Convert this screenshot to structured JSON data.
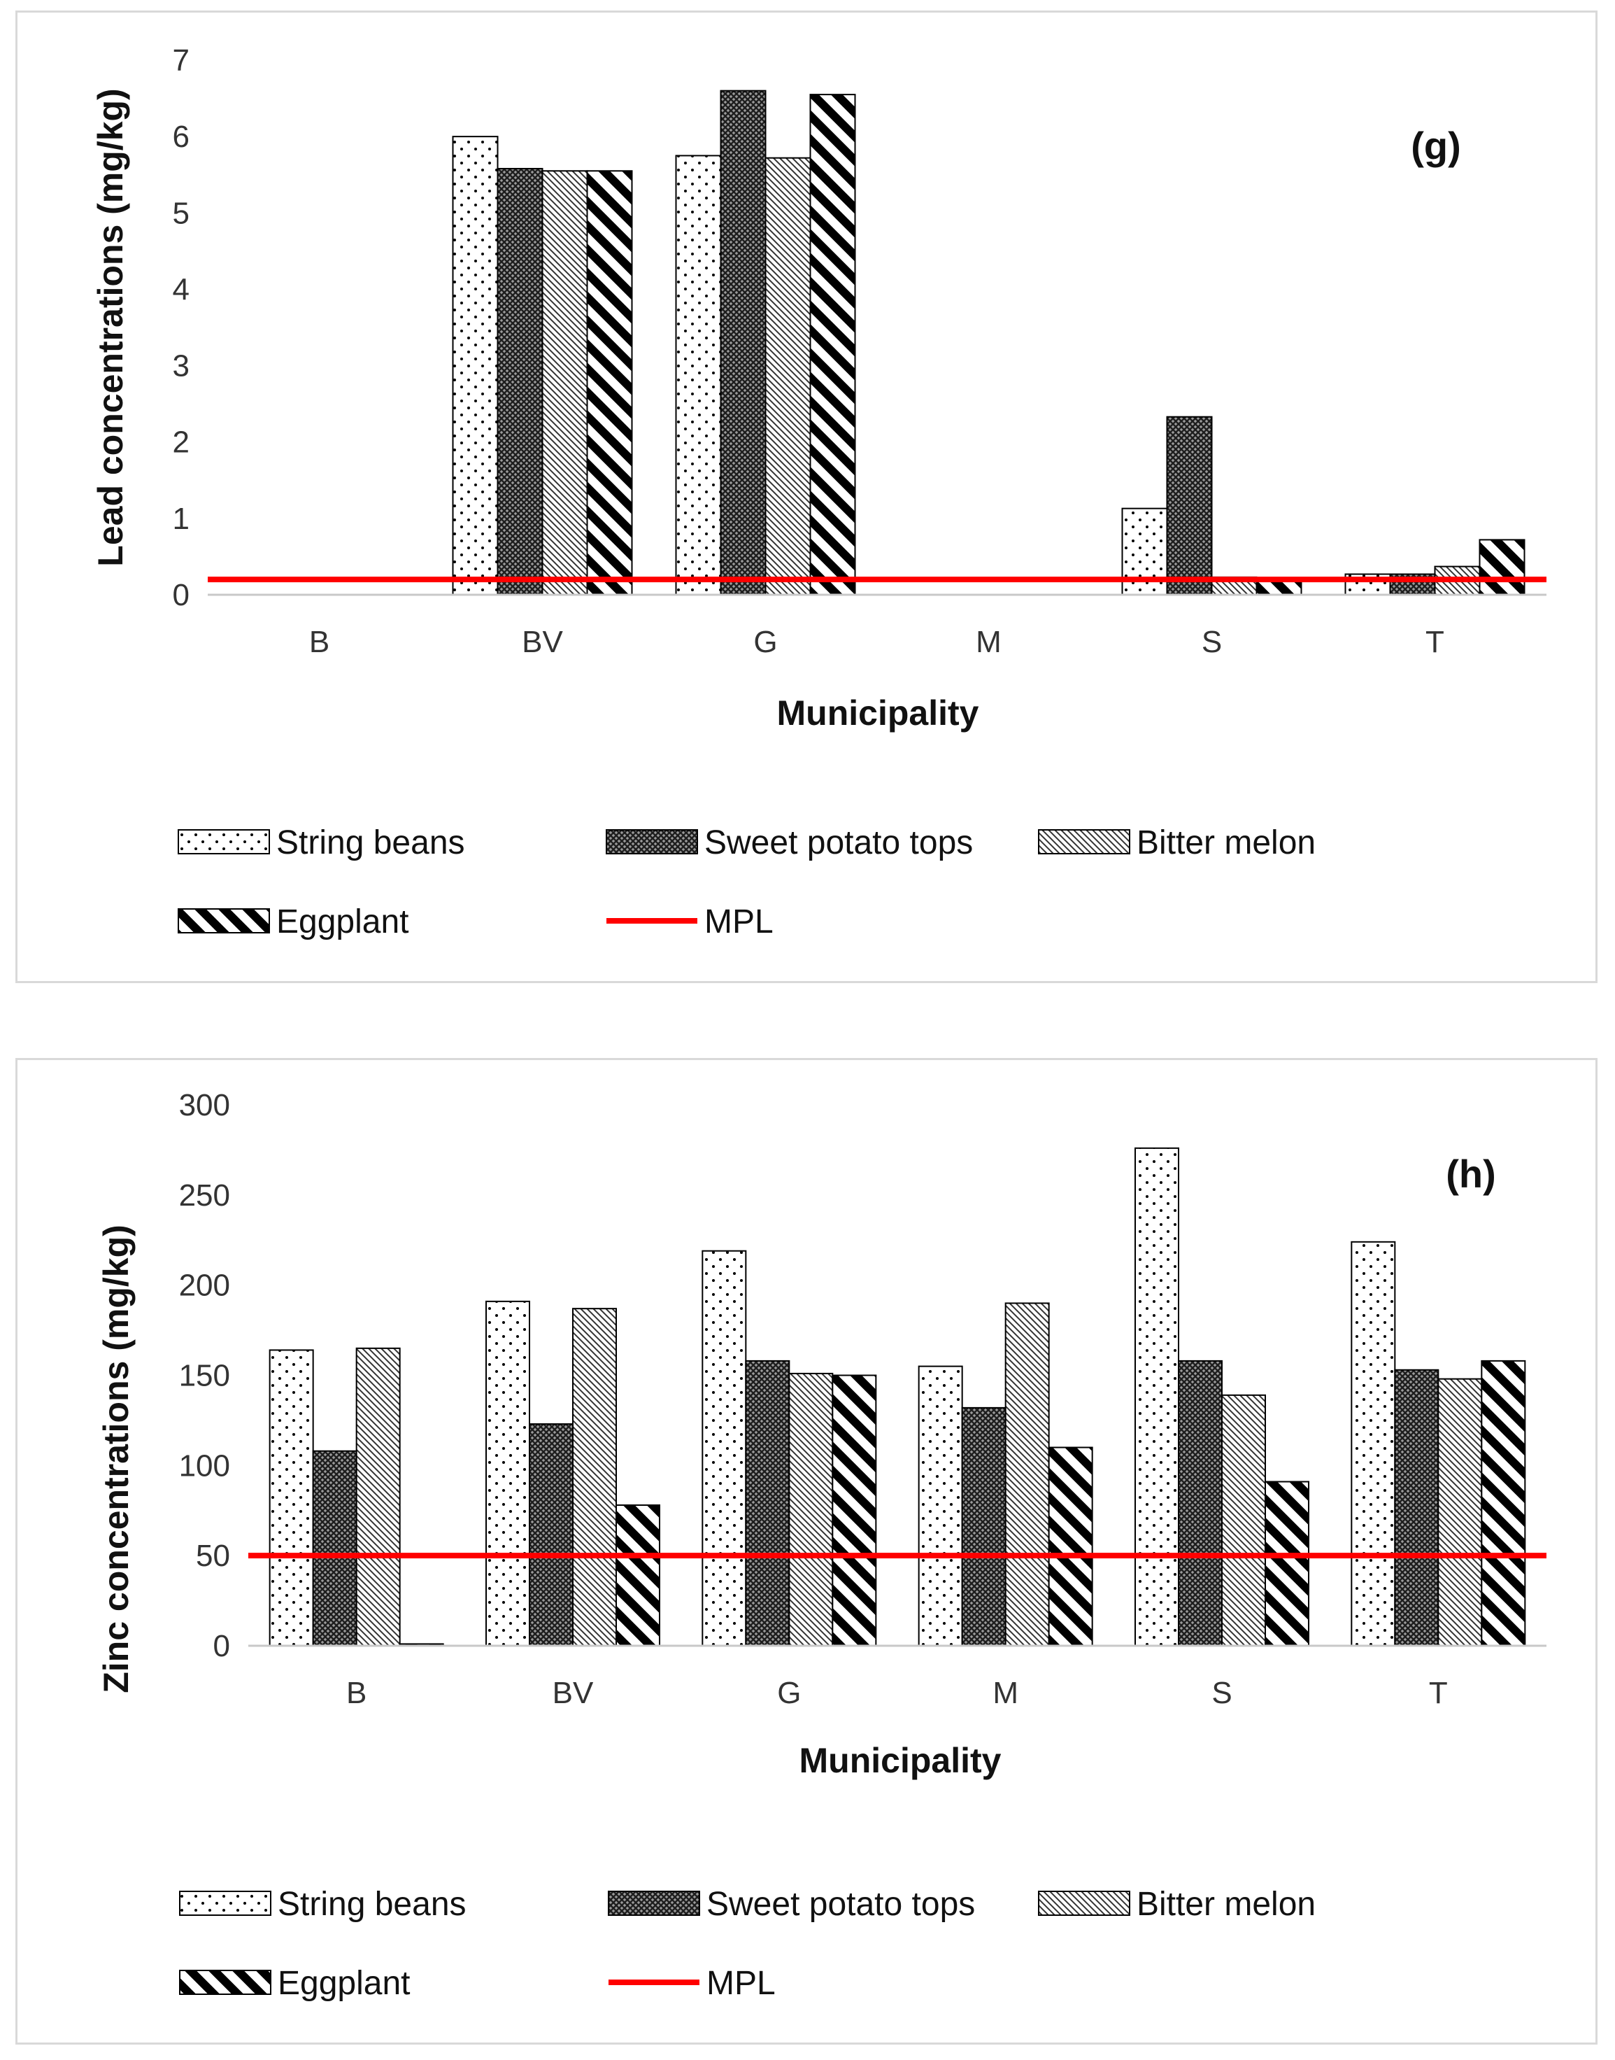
{
  "chart_data": [
    {
      "type": "bar",
      "panel_label": "(g)",
      "title": "",
      "xlabel": "Municipality",
      "ylabel": "Lead concentrations (mg/kg)",
      "ylim": [
        0,
        7
      ],
      "yticks": [
        0,
        1,
        2,
        3,
        4,
        5,
        6,
        7
      ],
      "categories": [
        "B",
        "BV",
        "G",
        "M",
        "S",
        "T"
      ],
      "series": [
        {
          "name": "String beans",
          "pattern": "dots",
          "values": [
            0,
            6.0,
            5.75,
            0,
            1.13,
            0.27
          ]
        },
        {
          "name": "Sweet potato tops",
          "pattern": "crosshatch",
          "values": [
            0,
            5.58,
            6.6,
            0,
            2.33,
            0.27
          ]
        },
        {
          "name": "Bitter melon",
          "pattern": "diagonal-fine",
          "values": [
            0,
            5.55,
            5.72,
            0,
            0.23,
            0.37
          ]
        },
        {
          "name": "Eggplant",
          "pattern": "diagonal-wide",
          "values": [
            0,
            5.55,
            6.55,
            0,
            0.2,
            0.72
          ]
        }
      ],
      "reference_line": {
        "name": "MPL",
        "value": 0.2,
        "color": "#ff0000"
      },
      "legend": "bottom",
      "grid": false
    },
    {
      "type": "bar",
      "panel_label": "(h)",
      "title": "",
      "xlabel": "Municipality",
      "ylabel": "Zinc concentrations (mg/kg)",
      "ylim": [
        0,
        300
      ],
      "yticks": [
        0,
        50,
        100,
        150,
        200,
        250,
        300
      ],
      "categories": [
        "B",
        "BV",
        "G",
        "M",
        "S",
        "T"
      ],
      "series": [
        {
          "name": "String beans",
          "pattern": "dots",
          "values": [
            164,
            191,
            219,
            155,
            276,
            224
          ]
        },
        {
          "name": "Sweet potato tops",
          "pattern": "crosshatch",
          "values": [
            108,
            123,
            158,
            132,
            158,
            153
          ]
        },
        {
          "name": "Bitter melon",
          "pattern": "diagonal-fine",
          "values": [
            165,
            187,
            151,
            190,
            139,
            148
          ]
        },
        {
          "name": "Eggplant",
          "pattern": "diagonal-wide",
          "values": [
            1,
            78,
            150,
            110,
            91,
            158
          ]
        }
      ],
      "reference_line": {
        "name": "MPL",
        "value": 50,
        "color": "#ff0000"
      },
      "legend": "bottom",
      "grid": false
    }
  ]
}
